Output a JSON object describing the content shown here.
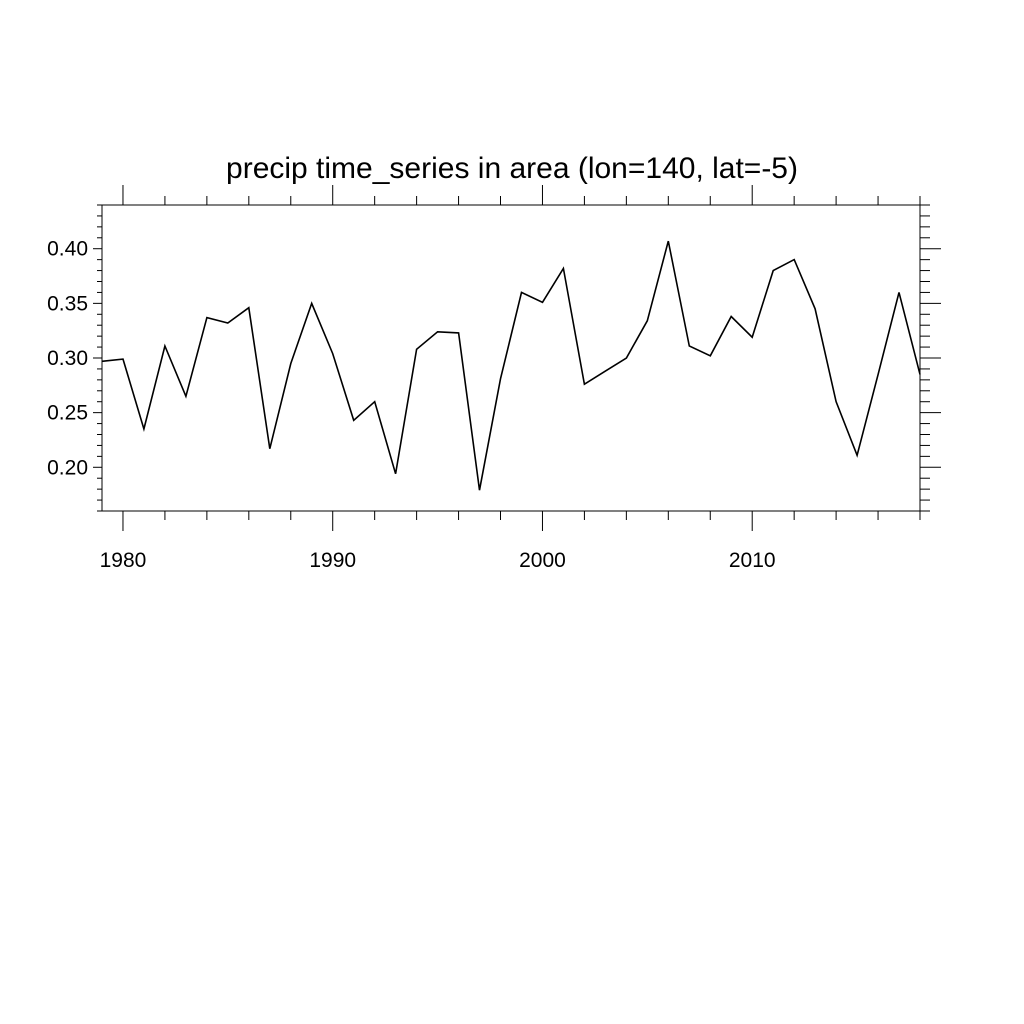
{
  "chart_data": {
    "type": "line",
    "title": "precip time_series in area (lon=140, lat=-5)",
    "xlabel": "",
    "ylabel": "",
    "xlim": [
      1979,
      2018
    ],
    "ylim": [
      0.16,
      0.44
    ],
    "x_ticks": [
      1980,
      1990,
      2000,
      2010
    ],
    "x_tick_labels": [
      "1980",
      "1990",
      "2000",
      "2010"
    ],
    "y_ticks": [
      0.2,
      0.25,
      0.3,
      0.35,
      0.4
    ],
    "y_tick_labels": [
      "0.20",
      "0.25",
      "0.30",
      "0.35",
      "0.40"
    ],
    "grid": false,
    "series": [
      {
        "x": [
          1979,
          1980,
          1981,
          1982,
          1983,
          1984,
          1985,
          1986,
          1987,
          1988,
          1989,
          1990,
          1991,
          1992,
          1993,
          1994,
          1995,
          1996,
          1997,
          1998,
          1999,
          2000,
          2001,
          2002,
          2003,
          2004,
          2005,
          2006,
          2007,
          2008,
          2009,
          2010,
          2011,
          2012,
          2013,
          2014,
          2015,
          2016,
          2017,
          2018
        ],
        "values": [
          0.297,
          0.299,
          0.235,
          0.311,
          0.265,
          0.337,
          0.332,
          0.346,
          0.217,
          0.295,
          0.35,
          0.304,
          0.243,
          0.26,
          0.194,
          0.308,
          0.324,
          0.323,
          0.179,
          0.281,
          0.36,
          0.351,
          0.382,
          0.276,
          0.288,
          0.3,
          0.334,
          0.407,
          0.311,
          0.302,
          0.338,
          0.319,
          0.38,
          0.39,
          0.345,
          0.26,
          0.211,
          0.285,
          0.36,
          0.285
        ],
        "color": "#000000"
      }
    ]
  }
}
